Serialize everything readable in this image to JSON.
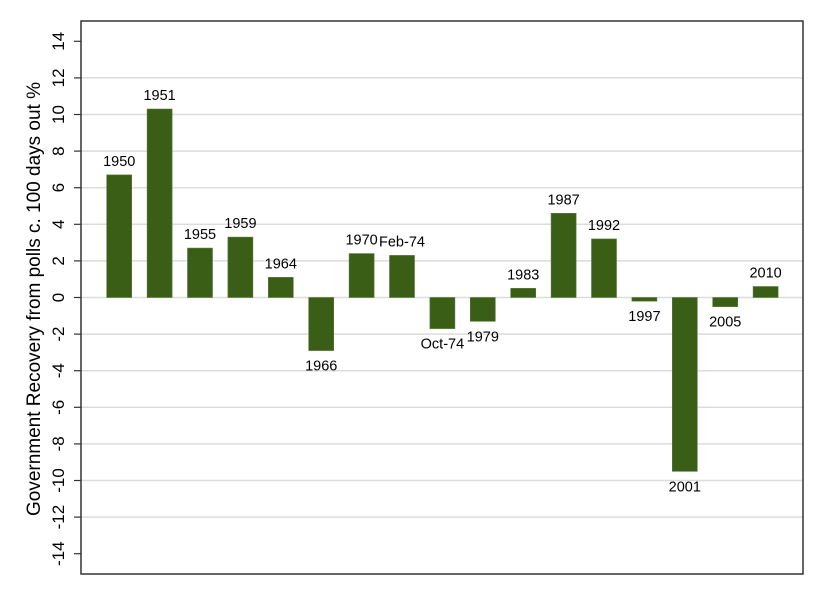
{
  "chart_data": {
    "type": "bar",
    "title": "",
    "xlabel": "",
    "ylabel": "Government Recovery from polls c. 100 days out %",
    "ylim": [
      -15,
      15
    ],
    "yticks": [
      -14,
      -12,
      -10,
      -8,
      -6,
      -4,
      -2,
      0,
      2,
      4,
      6,
      8,
      10,
      12,
      14
    ],
    "ytick_labels": [
      "-14",
      "-12",
      "-10",
      "-8",
      "-6",
      "-4",
      "-2",
      "0",
      "2",
      "4",
      "6",
      "8",
      "10",
      "12",
      "14"
    ],
    "gridlines": [
      -12,
      -10,
      -8,
      -6,
      -4,
      -2,
      0,
      2,
      4,
      6,
      8,
      10,
      12
    ],
    "grid": true,
    "legend": "none",
    "bar_color": "#3a5e16",
    "categories": [
      "1950",
      "1951",
      "1955",
      "1959",
      "1964",
      "1966",
      "1970",
      "Feb-74",
      "Oct-74",
      "1979",
      "1983",
      "1987",
      "1992",
      "1997",
      "2001",
      "2005",
      "2010"
    ],
    "values": [
      6.7,
      10.3,
      2.7,
      3.3,
      1.1,
      -2.9,
      2.4,
      2.3,
      -1.7,
      -1.3,
      0.5,
      4.6,
      3.2,
      -0.2,
      -9.5,
      -0.5,
      0.6
    ],
    "data_labels": [
      "1950",
      "1951",
      "1955",
      "1959",
      "1964",
      "1966",
      "1970",
      "Feb-74",
      "Oct-74",
      "1979",
      "1983",
      "1987",
      "1992",
      "1997",
      "2001",
      "2005",
      "2010"
    ]
  }
}
